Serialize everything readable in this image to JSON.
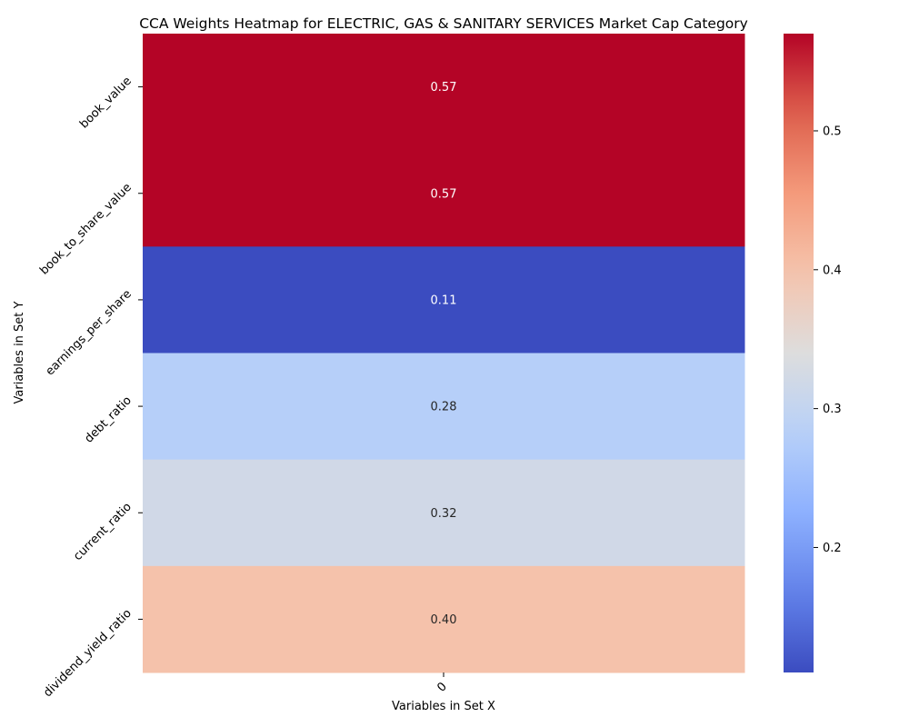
{
  "chart_data": {
    "type": "heatmap",
    "title": "CCA Weights Heatmap for ELECTRIC, GAS & SANITARY SERVICES Market Cap Category",
    "xlabel": "Variables in Set X",
    "ylabel": "Variables in Set Y",
    "x_categories": [
      "0"
    ],
    "y_categories": [
      "book_value",
      "book_to_share_value",
      "earnings_per_share",
      "debt_ratio",
      "current_ratio",
      "dividend_yield_ratio"
    ],
    "values": [
      [
        0.57
      ],
      [
        0.57
      ],
      [
        0.11
      ],
      [
        0.28
      ],
      [
        0.32
      ],
      [
        0.4
      ]
    ],
    "value_labels": [
      "0.57",
      "0.57",
      "0.11",
      "0.28",
      "0.32",
      "0.40"
    ],
    "colormap": "coolwarm",
    "color_range": [
      0.11,
      0.57
    ],
    "colorbar_ticks": [
      0.2,
      0.3,
      0.4,
      0.5
    ],
    "colorbar_tick_labels": [
      "0.2",
      "0.3",
      "0.4",
      "0.5"
    ],
    "annotation_colors": {
      "light": "#ffffff",
      "dark": "#262626"
    }
  }
}
